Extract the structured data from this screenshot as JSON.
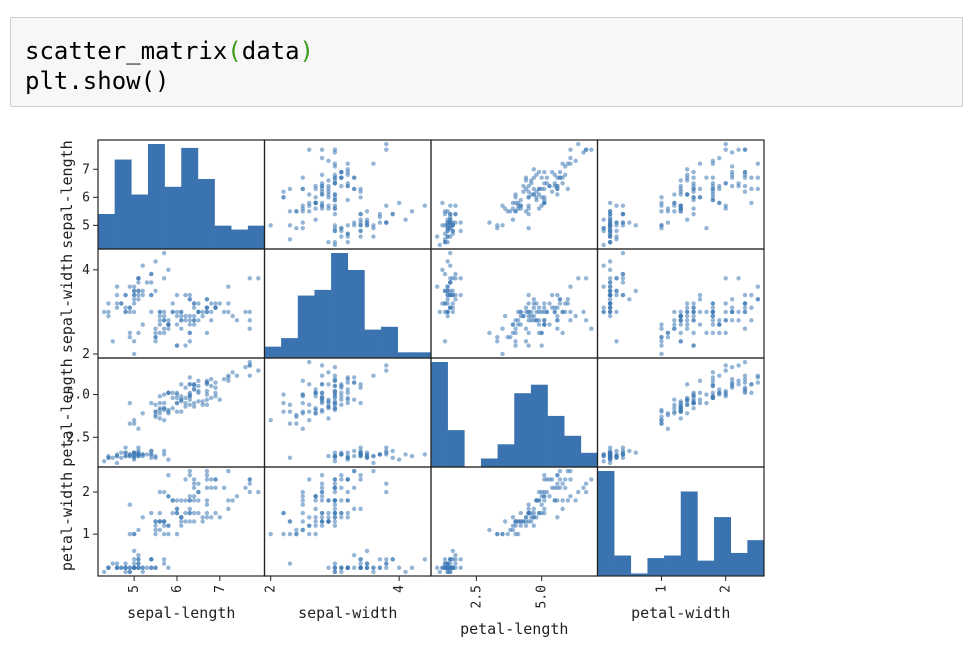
{
  "code": {
    "line1_fn": "scatter_matrix",
    "line1_open": "(",
    "line1_arg": "data",
    "line1_close": ")",
    "line2": "plt.show()"
  },
  "chart_data": {
    "type": "scatter",
    "kind": "scatter_matrix",
    "variables": [
      "sepal-length",
      "sepal-width",
      "petal-length",
      "petal-width"
    ],
    "diagonal": "histogram",
    "point_color": "#3c78b4",
    "bar_color": "#3a73b0",
    "ticks": {
      "sepal-length": {
        "values": [
          5,
          6,
          7
        ],
        "labels": [
          "5",
          "6",
          "7"
        ],
        "range": [
          4.3,
          7.9
        ]
      },
      "sepal-width": {
        "values": [
          2,
          4
        ],
        "labels": [
          "2",
          "4"
        ],
        "range": [
          2.0,
          4.4
        ]
      },
      "petal-length": {
        "values": [
          2.5,
          5.0
        ],
        "labels": [
          "2.5",
          "5.0"
        ],
        "range": [
          1.0,
          6.9
        ]
      },
      "petal-width": {
        "values": [
          1,
          2
        ],
        "labels": [
          "1",
          "2"
        ],
        "range": [
          0.1,
          2.5
        ]
      }
    },
    "histograms": {
      "sepal-length": [
        9,
        23,
        14,
        27,
        16,
        26,
        18,
        6,
        5,
        6
      ],
      "sepal-width": [
        4,
        7,
        22,
        24,
        37,
        31,
        10,
        11,
        2,
        2
      ],
      "petal-length": [
        37,
        13,
        0,
        3,
        8,
        26,
        29,
        18,
        11,
        5
      ],
      "petal-width": [
        41,
        8,
        1,
        7,
        8,
        33,
        6,
        23,
        9,
        14
      ]
    },
    "data": {
      "sepal-length": [
        5.1,
        4.9,
        4.7,
        4.6,
        5.0,
        5.4,
        4.6,
        5.0,
        4.4,
        4.9,
        5.4,
        4.8,
        4.8,
        4.3,
        5.8,
        5.7,
        5.4,
        5.1,
        5.7,
        5.1,
        5.4,
        5.1,
        4.6,
        5.1,
        4.8,
        5.0,
        5.0,
        5.2,
        5.2,
        4.7,
        4.8,
        5.4,
        5.2,
        5.5,
        4.9,
        5.0,
        5.5,
        4.9,
        4.4,
        5.1,
        5.0,
        4.5,
        4.4,
        5.0,
        5.1,
        4.8,
        5.1,
        4.6,
        5.3,
        5.0,
        7.0,
        6.4,
        6.9,
        5.5,
        6.5,
        5.7,
        6.3,
        4.9,
        6.6,
        5.2,
        5.0,
        5.9,
        6.0,
        6.1,
        5.6,
        6.7,
        5.6,
        5.8,
        6.2,
        5.6,
        5.9,
        6.1,
        6.3,
        6.1,
        6.4,
        6.6,
        6.8,
        6.7,
        6.0,
        5.7,
        5.5,
        5.5,
        5.8,
        6.0,
        5.4,
        6.0,
        6.7,
        6.3,
        5.6,
        5.5,
        5.5,
        6.1,
        5.8,
        5.0,
        5.6,
        5.7,
        5.7,
        6.2,
        5.1,
        5.7,
        6.3,
        5.8,
        7.1,
        6.3,
        6.5,
        7.6,
        4.9,
        7.3,
        6.7,
        7.2,
        6.5,
        6.4,
        6.8,
        5.7,
        5.8,
        6.4,
        6.5,
        7.7,
        7.7,
        6.0,
        6.9,
        5.6,
        7.7,
        6.3,
        6.7,
        7.2,
        6.2,
        6.1,
        6.4,
        7.2,
        7.4,
        7.9,
        6.4,
        6.3,
        6.1,
        7.7,
        6.3,
        6.4,
        6.0,
        6.9,
        6.7,
        6.9,
        5.8,
        6.8,
        6.7,
        6.7,
        6.3,
        6.5,
        6.2,
        5.9
      ],
      "sepal-width": [
        3.5,
        3.0,
        3.2,
        3.1,
        3.6,
        3.9,
        3.4,
        3.4,
        2.9,
        3.1,
        3.7,
        3.4,
        3.0,
        3.0,
        4.0,
        4.4,
        3.9,
        3.5,
        3.8,
        3.8,
        3.4,
        3.7,
        3.6,
        3.3,
        3.4,
        3.0,
        3.4,
        3.5,
        3.4,
        3.2,
        3.1,
        3.4,
        4.1,
        4.2,
        3.1,
        3.2,
        3.5,
        3.6,
        3.0,
        3.4,
        3.5,
        2.3,
        3.2,
        3.5,
        3.8,
        3.0,
        3.8,
        3.2,
        3.7,
        3.3,
        3.2,
        3.2,
        3.1,
        2.3,
        2.8,
        2.8,
        3.3,
        2.4,
        2.9,
        2.7,
        2.0,
        3.0,
        2.2,
        2.9,
        2.9,
        3.1,
        3.0,
        2.7,
        2.2,
        2.5,
        3.2,
        2.8,
        2.5,
        2.8,
        2.9,
        3.0,
        2.8,
        3.0,
        2.9,
        2.6,
        2.4,
        2.4,
        2.7,
        2.7,
        3.0,
        3.4,
        3.1,
        2.3,
        3.0,
        2.5,
        2.6,
        3.0,
        2.6,
        2.3,
        2.7,
        3.0,
        2.9,
        2.9,
        2.5,
        2.8,
        3.3,
        2.7,
        3.0,
        2.9,
        3.0,
        3.0,
        2.5,
        2.9,
        2.5,
        3.6,
        3.2,
        2.7,
        3.0,
        2.5,
        2.8,
        3.2,
        3.0,
        3.8,
        2.6,
        2.2,
        3.2,
        2.8,
        2.8,
        2.7,
        3.3,
        3.2,
        2.8,
        3.0,
        2.8,
        3.0,
        2.8,
        3.8,
        2.8,
        2.8,
        2.6,
        3.0,
        3.4,
        3.1,
        3.0,
        3.1,
        3.1,
        3.1,
        2.7,
        3.2,
        3.3,
        3.0,
        2.5,
        3.0,
        3.4,
        3.0
      ],
      "petal-length": [
        1.4,
        1.4,
        1.3,
        1.5,
        1.4,
        1.7,
        1.4,
        1.5,
        1.4,
        1.5,
        1.5,
        1.6,
        1.4,
        1.1,
        1.2,
        1.5,
        1.3,
        1.4,
        1.7,
        1.5,
        1.7,
        1.5,
        1.0,
        1.7,
        1.9,
        1.6,
        1.6,
        1.5,
        1.4,
        1.6,
        1.6,
        1.5,
        1.5,
        1.4,
        1.5,
        1.2,
        1.3,
        1.4,
        1.3,
        1.5,
        1.3,
        1.3,
        1.3,
        1.6,
        1.9,
        1.4,
        1.6,
        1.4,
        1.5,
        1.4,
        4.7,
        4.5,
        4.9,
        4.0,
        4.6,
        4.5,
        4.7,
        3.3,
        4.6,
        3.9,
        3.5,
        4.2,
        4.0,
        4.7,
        3.6,
        4.4,
        4.5,
        4.1,
        4.5,
        3.9,
        4.8,
        4.0,
        4.9,
        4.7,
        4.3,
        4.4,
        4.8,
        5.0,
        4.5,
        3.5,
        3.8,
        3.7,
        3.9,
        5.1,
        4.5,
        4.5,
        4.7,
        4.4,
        4.1,
        4.0,
        4.4,
        4.6,
        4.0,
        3.3,
        4.2,
        4.2,
        4.2,
        4.3,
        3.0,
        4.1,
        6.0,
        5.1,
        5.9,
        5.6,
        5.8,
        6.6,
        4.5,
        6.3,
        5.8,
        6.1,
        5.1,
        5.3,
        5.5,
        5.0,
        5.1,
        5.3,
        5.5,
        6.7,
        6.9,
        5.0,
        5.7,
        4.9,
        6.7,
        4.9,
        5.7,
        6.0,
        4.8,
        4.9,
        5.6,
        5.8,
        6.1,
        6.4,
        5.6,
        5.1,
        5.6,
        6.1,
        5.6,
        5.5,
        4.8,
        5.4,
        5.6,
        5.1,
        5.1,
        5.9,
        5.7,
        5.2,
        5.0,
        5.2,
        5.4,
        5.1
      ],
      "petal-width": [
        0.2,
        0.2,
        0.2,
        0.2,
        0.2,
        0.4,
        0.3,
        0.2,
        0.2,
        0.1,
        0.2,
        0.2,
        0.1,
        0.1,
        0.2,
        0.4,
        0.4,
        0.3,
        0.3,
        0.3,
        0.2,
        0.4,
        0.2,
        0.5,
        0.2,
        0.2,
        0.4,
        0.2,
        0.2,
        0.2,
        0.2,
        0.4,
        0.1,
        0.2,
        0.2,
        0.2,
        0.2,
        0.1,
        0.2,
        0.2,
        0.3,
        0.3,
        0.2,
        0.6,
        0.4,
        0.3,
        0.2,
        0.2,
        0.2,
        0.2,
        1.4,
        1.5,
        1.5,
        1.3,
        1.5,
        1.3,
        1.6,
        1.0,
        1.3,
        1.4,
        1.0,
        1.5,
        1.0,
        1.4,
        1.3,
        1.4,
        1.5,
        1.0,
        1.5,
        1.1,
        1.8,
        1.3,
        1.5,
        1.2,
        1.3,
        1.4,
        1.4,
        1.7,
        1.5,
        1.0,
        1.1,
        1.0,
        1.2,
        1.6,
        1.5,
        1.6,
        1.5,
        1.3,
        1.3,
        1.3,
        1.2,
        1.4,
        1.2,
        1.0,
        1.3,
        1.2,
        1.3,
        1.3,
        1.1,
        1.3,
        2.5,
        1.9,
        2.1,
        1.8,
        2.2,
        2.1,
        1.7,
        1.8,
        1.8,
        2.5,
        2.0,
        1.9,
        2.1,
        2.0,
        2.4,
        2.3,
        1.8,
        2.2,
        2.3,
        1.5,
        2.3,
        2.0,
        2.0,
        1.8,
        2.1,
        1.8,
        1.8,
        1.8,
        2.1,
        1.6,
        1.9,
        2.0,
        2.2,
        1.5,
        1.4,
        2.3,
        2.4,
        1.8,
        1.8,
        2.1,
        2.4,
        2.3,
        1.9,
        2.3,
        2.5,
        2.3,
        1.9,
        2.0,
        2.3,
        1.8
      ]
    }
  }
}
